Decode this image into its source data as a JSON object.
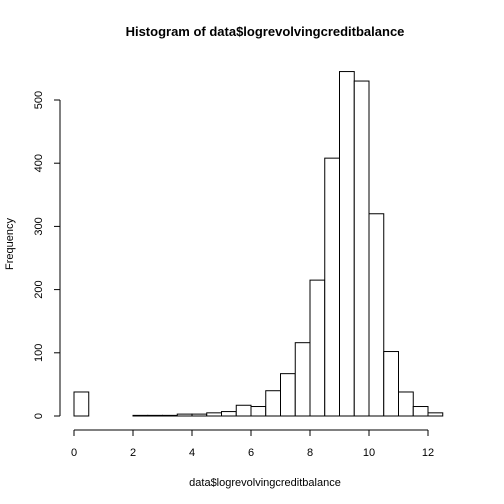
{
  "chart_data": {
    "type": "bar",
    "title": "Histogram of data$logrevolvingcreditbalance",
    "xlabel": "data$logrevolvingcreditbalance",
    "ylabel": "Frequency",
    "bin_width": 0.5,
    "bins": [
      {
        "x0": 0.0,
        "x1": 0.5,
        "count": 38
      },
      {
        "x0": 0.5,
        "x1": 1.0,
        "count": 0
      },
      {
        "x0": 1.0,
        "x1": 1.5,
        "count": 0
      },
      {
        "x0": 1.5,
        "x1": 2.0,
        "count": 0
      },
      {
        "x0": 2.0,
        "x1": 2.5,
        "count": 1
      },
      {
        "x0": 2.5,
        "x1": 3.0,
        "count": 1
      },
      {
        "x0": 3.0,
        "x1": 3.5,
        "count": 1
      },
      {
        "x0": 3.5,
        "x1": 4.0,
        "count": 3
      },
      {
        "x0": 4.0,
        "x1": 4.5,
        "count": 3
      },
      {
        "x0": 4.5,
        "x1": 5.0,
        "count": 5
      },
      {
        "x0": 5.0,
        "x1": 5.5,
        "count": 7
      },
      {
        "x0": 5.5,
        "x1": 6.0,
        "count": 17
      },
      {
        "x0": 6.0,
        "x1": 6.5,
        "count": 15
      },
      {
        "x0": 6.5,
        "x1": 7.0,
        "count": 40
      },
      {
        "x0": 7.0,
        "x1": 7.5,
        "count": 67
      },
      {
        "x0": 7.5,
        "x1": 8.0,
        "count": 116
      },
      {
        "x0": 8.0,
        "x1": 8.5,
        "count": 215
      },
      {
        "x0": 8.5,
        "x1": 9.0,
        "count": 408
      },
      {
        "x0": 9.0,
        "x1": 9.5,
        "count": 545
      },
      {
        "x0": 9.5,
        "x1": 10.0,
        "count": 530
      },
      {
        "x0": 10.0,
        "x1": 10.5,
        "count": 320
      },
      {
        "x0": 10.5,
        "x1": 11.0,
        "count": 102
      },
      {
        "x0": 11.0,
        "x1": 11.5,
        "count": 38
      },
      {
        "x0": 11.5,
        "x1": 12.0,
        "count": 15
      },
      {
        "x0": 12.0,
        "x1": 12.5,
        "count": 5
      }
    ],
    "x_ticks": [
      0,
      2,
      4,
      6,
      8,
      10,
      12
    ],
    "y_ticks": [
      0,
      100,
      200,
      300,
      400,
      500
    ],
    "xlim": [
      -0.5,
      13.0
    ],
    "ylim": [
      0,
      572
    ],
    "grid": false
  }
}
